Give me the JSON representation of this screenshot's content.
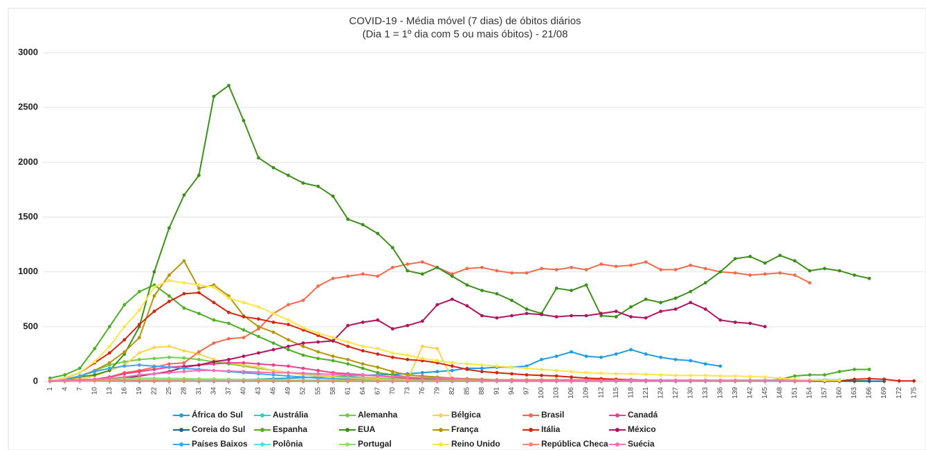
{
  "chart_data": {
    "type": "line",
    "title": "COVID-19 - Média móvel (7 dias) de óbitos diários",
    "subtitle": "(Dia 1 = 1º dia com 5 ou mais óbitos) - 21/08",
    "x": [
      1,
      4,
      7,
      10,
      13,
      16,
      19,
      22,
      25,
      28,
      31,
      34,
      37,
      40,
      43,
      46,
      49,
      52,
      55,
      58,
      61,
      64,
      67,
      70,
      73,
      76,
      79,
      82,
      85,
      88,
      91,
      94,
      97,
      100,
      103,
      106,
      109,
      112,
      115,
      118,
      121,
      124,
      127,
      130,
      133,
      136,
      139,
      142,
      145,
      148,
      151,
      154,
      157,
      160,
      163,
      166,
      169,
      172,
      175
    ],
    "xlim": [
      0,
      177
    ],
    "xticks": [
      1,
      4,
      7,
      10,
      13,
      16,
      19,
      22,
      25,
      28,
      31,
      34,
      37,
      40,
      43,
      46,
      49,
      52,
      55,
      58,
      61,
      64,
      67,
      70,
      73,
      76,
      79,
      82,
      85,
      88,
      91,
      94,
      97,
      100,
      103,
      106,
      109,
      112,
      115,
      118,
      121,
      124,
      127,
      130,
      133,
      136,
      139,
      142,
      145,
      148,
      151,
      154,
      157,
      160,
      163,
      166,
      169,
      172,
      175
    ],
    "ylim": [
      0,
      3000
    ],
    "yticks": [
      0,
      500,
      1000,
      1500,
      2000,
      2500,
      3000
    ],
    "grid": true,
    "markers": true,
    "legend": "bottom",
    "series": [
      {
        "name": "África do Sul",
        "color": "#1f9be5",
        "values": [
          5,
          5,
          5,
          5,
          5,
          5,
          5,
          5,
          8,
          8,
          10,
          10,
          10,
          15,
          20,
          25,
          30,
          35,
          40,
          45,
          50,
          55,
          60,
          65,
          70,
          80,
          90,
          100,
          120,
          120,
          130,
          130,
          140,
          200,
          230,
          270,
          230,
          220,
          250,
          290,
          250,
          220,
          200,
          190,
          160,
          140,
          null,
          null,
          null,
          null,
          null,
          null,
          null,
          null,
          null,
          null,
          null,
          null,
          null
        ]
      },
      {
        "name": "Austrália",
        "color": "#2fd1c5",
        "values": [
          2,
          3,
          5,
          8,
          10,
          12,
          14,
          14,
          12,
          10,
          8,
          6,
          5,
          4,
          3,
          3,
          2,
          2,
          2,
          2,
          2,
          2,
          2,
          2,
          2,
          2,
          2,
          2,
          2,
          2,
          2,
          2,
          2,
          2,
          2,
          2,
          2,
          2,
          2,
          2,
          2,
          2,
          2,
          3,
          4,
          6,
          8,
          10,
          12,
          14,
          14,
          15,
          15,
          14,
          null,
          null,
          null,
          null,
          null
        ]
      },
      {
        "name": "Alemanha",
        "color": "#6fcf4a",
        "values": [
          5,
          15,
          50,
          100,
          150,
          180,
          200,
          210,
          220,
          215,
          200,
          180,
          160,
          140,
          120,
          100,
          80,
          65,
          55,
          45,
          40,
          35,
          30,
          25,
          20,
          15,
          15,
          12,
          10,
          10,
          10,
          10,
          10,
          10,
          10,
          10,
          10,
          10,
          10,
          10,
          8,
          8,
          8,
          8,
          8,
          6,
          6,
          6,
          6,
          6,
          6,
          6,
          6,
          6,
          6,
          6,
          null,
          null,
          null
        ]
      },
      {
        "name": "Bélgica",
        "color": "#fdd34d",
        "values": [
          5,
          10,
          20,
          50,
          100,
          150,
          260,
          310,
          320,
          280,
          250,
          200,
          170,
          150,
          130,
          100,
          80,
          60,
          50,
          40,
          30,
          25,
          20,
          15,
          15,
          320,
          300,
          20,
          15,
          12,
          10,
          10,
          10,
          10,
          10,
          10,
          10,
          10,
          10,
          10,
          10,
          10,
          10,
          10,
          10,
          10,
          10,
          10,
          10,
          10,
          10,
          10,
          10,
          10,
          null,
          null,
          null,
          null,
          null
        ]
      },
      {
        "name": "Brasil",
        "color": "#f46b4a",
        "values": [
          5,
          5,
          10,
          20,
          40,
          80,
          100,
          130,
          160,
          170,
          270,
          350,
          390,
          400,
          480,
          620,
          700,
          740,
          870,
          940,
          960,
          980,
          960,
          1040,
          1070,
          1090,
          1040,
          980,
          1030,
          1040,
          1010,
          990,
          990,
          1030,
          1020,
          1040,
          1020,
          1070,
          1050,
          1060,
          1090,
          1020,
          1020,
          1060,
          1030,
          1000,
          990,
          970,
          980,
          990,
          970,
          900,
          null,
          null,
          null,
          null,
          null,
          null,
          null
        ]
      },
      {
        "name": "Canadá",
        "color": "#ee3f8c",
        "values": [
          2,
          5,
          10,
          20,
          40,
          70,
          90,
          110,
          130,
          140,
          150,
          160,
          170,
          170,
          160,
          150,
          140,
          120,
          100,
          80,
          70,
          60,
          50,
          40,
          30,
          25,
          20,
          20,
          15,
          15,
          12,
          12,
          12,
          12,
          12,
          12,
          12,
          12,
          12,
          12,
          10,
          10,
          10,
          10,
          10,
          10,
          10,
          10,
          10,
          10,
          10,
          10,
          null,
          null,
          null,
          null,
          null,
          null,
          null
        ]
      },
      {
        "name": "Coreia do Sul",
        "color": "#1a5f9e",
        "values": [
          5,
          5,
          6,
          6,
          5,
          5,
          4,
          4,
          3,
          3,
          2,
          2,
          2,
          2,
          2,
          2,
          2,
          2,
          2,
          2,
          2,
          2,
          2,
          2,
          2,
          2,
          2,
          2,
          2,
          2,
          2,
          2,
          2,
          2,
          2,
          2,
          2,
          2,
          2,
          2,
          2,
          2,
          2,
          2,
          2,
          2,
          2,
          2,
          2,
          2,
          2,
          2,
          2,
          2,
          2,
          2,
          2,
          null,
          null
        ]
      },
      {
        "name": "Espanha",
        "color": "#4cae24",
        "values": [
          30,
          60,
          120,
          300,
          500,
          700,
          820,
          880,
          780,
          670,
          620,
          560,
          530,
          470,
          410,
          350,
          290,
          240,
          210,
          190,
          160,
          120,
          80,
          60,
          40,
          30,
          20,
          15,
          10,
          5,
          5,
          5,
          5,
          5,
          5,
          5,
          5,
          5,
          5,
          5,
          5,
          5,
          5,
          5,
          5,
          5,
          5,
          5,
          5,
          20,
          50,
          60,
          60,
          90,
          110,
          110,
          null,
          null,
          null
        ]
      },
      {
        "name": "EUA",
        "color": "#3c8f1a",
        "values": [
          10,
          20,
          40,
          60,
          100,
          250,
          500,
          1000,
          1400,
          1700,
          1880,
          2600,
          2700,
          2380,
          2040,
          1950,
          1880,
          1810,
          1780,
          1690,
          1480,
          1430,
          1350,
          1220,
          1010,
          980,
          1040,
          960,
          880,
          830,
          800,
          740,
          660,
          620,
          850,
          830,
          880,
          600,
          590,
          680,
          750,
          720,
          760,
          820,
          900,
          1000,
          1120,
          1140,
          1080,
          1150,
          1100,
          1010,
          1030,
          1010,
          970,
          940,
          null,
          null,
          null
        ]
      },
      {
        "name": "França",
        "color": "#b59507",
        "values": [
          5,
          10,
          40,
          100,
          170,
          270,
          400,
          780,
          970,
          1100,
          850,
          880,
          780,
          600,
          500,
          450,
          380,
          320,
          270,
          230,
          200,
          160,
          130,
          90,
          60,
          50,
          40,
          30,
          25,
          20,
          15,
          15,
          15,
          15,
          15,
          15,
          15,
          15,
          15,
          15,
          12,
          12,
          12,
          12,
          12,
          12,
          12,
          12,
          12,
          12,
          10,
          10,
          10,
          10,
          null,
          null,
          null,
          null,
          null
        ]
      },
      {
        "name": "Itália",
        "color": "#d4240e",
        "values": [
          10,
          30,
          80,
          170,
          260,
          380,
          520,
          640,
          730,
          800,
          810,
          720,
          630,
          590,
          570,
          540,
          520,
          470,
          420,
          370,
          320,
          280,
          250,
          220,
          200,
          190,
          170,
          140,
          110,
          90,
          80,
          70,
          60,
          55,
          50,
          40,
          30,
          25,
          20,
          15,
          12,
          10,
          10,
          8,
          8,
          8,
          6,
          5,
          5,
          5,
          5,
          5,
          5,
          5,
          20,
          25,
          20,
          5,
          5
        ]
      },
      {
        "name": "México",
        "color": "#b0135f",
        "values": [
          5,
          5,
          10,
          15,
          20,
          30,
          50,
          70,
          90,
          130,
          150,
          180,
          200,
          230,
          260,
          290,
          320,
          350,
          360,
          370,
          510,
          540,
          560,
          480,
          510,
          550,
          700,
          750,
          690,
          600,
          580,
          600,
          620,
          610,
          590,
          600,
          600,
          620,
          640,
          590,
          580,
          640,
          660,
          720,
          660,
          560,
          540,
          530,
          500,
          null,
          null,
          null,
          null,
          null,
          null,
          null,
          null,
          null,
          null
        ]
      },
      {
        "name": "Países Baixos",
        "color": "#3aa8f0",
        "values": [
          5,
          20,
          50,
          90,
          120,
          140,
          150,
          140,
          130,
          120,
          110,
          100,
          90,
          80,
          70,
          60,
          50,
          40,
          30,
          25,
          20,
          15,
          10,
          10,
          8,
          6,
          5,
          5,
          5,
          5,
          5,
          5,
          5,
          5,
          5,
          5,
          5,
          5,
          5,
          5,
          5,
          5,
          5,
          5,
          5,
          5,
          5,
          5,
          5,
          5,
          5,
          null,
          null,
          null,
          null,
          null,
          null,
          null,
          null
        ]
      },
      {
        "name": "Polônia",
        "color": "#4fe0e0",
        "values": [
          3,
          5,
          8,
          10,
          12,
          14,
          15,
          15,
          15,
          14,
          14,
          13,
          12,
          12,
          12,
          12,
          12,
          11,
          11,
          10,
          10,
          10,
          10,
          10,
          10,
          10,
          10,
          10,
          10,
          10,
          10,
          10,
          10,
          10,
          10,
          10,
          10,
          10,
          10,
          10,
          10,
          10,
          10,
          10,
          10,
          10,
          10,
          10,
          10,
          10,
          10,
          10,
          10,
          10,
          null,
          null,
          null,
          null,
          null
        ]
      },
      {
        "name": "Portugal",
        "color": "#8ee070",
        "values": [
          5,
          10,
          15,
          20,
          25,
          28,
          30,
          30,
          28,
          26,
          24,
          22,
          20,
          18,
          16,
          15,
          14,
          12,
          10,
          10,
          8,
          8,
          8,
          8,
          8,
          8,
          8,
          8,
          8,
          8,
          8,
          8,
          8,
          8,
          8,
          8,
          8,
          8,
          8,
          8,
          8,
          8,
          8,
          8,
          8,
          8,
          8,
          8,
          8,
          8,
          6,
          6,
          null,
          null,
          null,
          null,
          null,
          null,
          null
        ]
      },
      {
        "name": "Reino Unido",
        "color": "#ffe44a",
        "values": [
          10,
          30,
          80,
          180,
          320,
          500,
          650,
          860,
          920,
          900,
          880,
          860,
          760,
          720,
          680,
          620,
          560,
          490,
          440,
          400,
          360,
          320,
          300,
          260,
          240,
          210,
          190,
          170,
          160,
          150,
          140,
          130,
          120,
          110,
          100,
          90,
          80,
          75,
          70,
          70,
          65,
          60,
          55,
          55,
          55,
          50,
          50,
          45,
          40,
          30,
          20,
          15,
          10,
          10,
          null,
          null,
          null,
          null,
          null
        ]
      },
      {
        "name": "República Checa",
        "color": "#f28a6a",
        "values": [
          1,
          2,
          3,
          5,
          6,
          7,
          7,
          6,
          5,
          4,
          3,
          3,
          3,
          3,
          3,
          3,
          3,
          3,
          3,
          3,
          3,
          3,
          3,
          3,
          3,
          3,
          3,
          3,
          3,
          3,
          3,
          3,
          3,
          3,
          3,
          3,
          3,
          3,
          3,
          3,
          3,
          3,
          3,
          3,
          3,
          3,
          3,
          3,
          3,
          3,
          3,
          3,
          null,
          null,
          null,
          null,
          null,
          null,
          null
        ]
      },
      {
        "name": "Suécia",
        "color": "#f56fb4",
        "values": [
          5,
          10,
          15,
          20,
          30,
          40,
          60,
          70,
          80,
          90,
          100,
          100,
          95,
          90,
          85,
          80,
          80,
          75,
          70,
          65,
          60,
          55,
          50,
          45,
          40,
          35,
          30,
          25,
          20,
          15,
          15,
          12,
          12,
          12,
          10,
          10,
          10,
          10,
          10,
          8,
          8,
          8,
          6,
          6,
          6,
          5,
          5,
          5,
          5,
          5,
          5,
          5,
          null,
          null,
          null,
          null,
          null,
          null,
          null
        ]
      }
    ]
  }
}
